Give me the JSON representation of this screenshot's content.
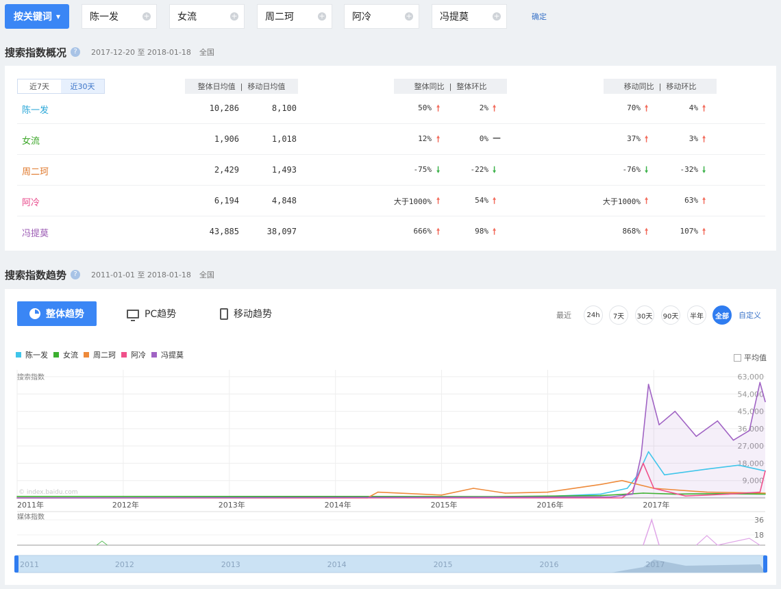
{
  "topbar": {
    "keyword_button": "按关键词",
    "keywords": [
      "陈一发",
      "女流",
      "周二珂",
      "阿冷",
      "冯提莫"
    ],
    "confirm": "确定"
  },
  "overview": {
    "title": "搜索指数概况",
    "date_range": "2017-12-20 至 2018-01-18",
    "region": "全国",
    "tabs": [
      "近7天",
      "近30天"
    ],
    "active_tab": "近30天",
    "headers": {
      "avg": [
        "整体日均值",
        "移动日均值"
      ],
      "overall_change": [
        "整体同比",
        "整体环比"
      ],
      "mobile_change": [
        "移动同比",
        "移动环比"
      ]
    },
    "rows": [
      {
        "name": "陈一发",
        "color": "#2aa7d8",
        "overall_avg": "10,286",
        "mobile_avg": "8,100",
        "overall_yoy": "50%",
        "overall_yoy_dir": "up",
        "overall_mom": "2%",
        "overall_mom_dir": "up",
        "mobile_yoy": "70%",
        "mobile_yoy_dir": "up",
        "mobile_mom": "4%",
        "mobile_mom_dir": "up"
      },
      {
        "name": "女流",
        "color": "#3aa526",
        "overall_avg": "1,906",
        "mobile_avg": "1,018",
        "overall_yoy": "12%",
        "overall_yoy_dir": "up",
        "overall_mom": "0%",
        "overall_mom_dir": "flat",
        "mobile_yoy": "37%",
        "mobile_yoy_dir": "up",
        "mobile_mom": "3%",
        "mobile_mom_dir": "up"
      },
      {
        "name": "周二珂",
        "color": "#e07a2e",
        "overall_avg": "2,429",
        "mobile_avg": "1,493",
        "overall_yoy": "-75%",
        "overall_yoy_dir": "down",
        "overall_mom": "-22%",
        "overall_mom_dir": "down",
        "mobile_yoy": "-76%",
        "mobile_yoy_dir": "down",
        "mobile_mom": "-32%",
        "mobile_mom_dir": "down"
      },
      {
        "name": "阿冷",
        "color": "#e8488a",
        "overall_avg": "6,194",
        "mobile_avg": "4,848",
        "overall_yoy": "大于1000%",
        "overall_yoy_dir": "up",
        "overall_mom": "54%",
        "overall_mom_dir": "up",
        "mobile_yoy": "大于1000%",
        "mobile_yoy_dir": "up",
        "mobile_mom": "63%",
        "mobile_mom_dir": "up"
      },
      {
        "name": "冯提莫",
        "color": "#9c5cb4",
        "overall_avg": "43,885",
        "mobile_avg": "38,097",
        "overall_yoy": "666%",
        "overall_yoy_dir": "up",
        "overall_mom": "98%",
        "overall_mom_dir": "up",
        "mobile_yoy": "868%",
        "mobile_yoy_dir": "up",
        "mobile_mom": "107%",
        "mobile_mom_dir": "up"
      }
    ]
  },
  "trend": {
    "title": "搜索指数趋势",
    "date_range": "2011-01-01 至 2018-01-18",
    "region": "全国",
    "tabs": {
      "overall": "整体趋势",
      "pc": "PC趋势",
      "mobile": "移动趋势"
    },
    "range_label": "最近",
    "ranges": [
      "24h",
      "7天",
      "30天",
      "90天",
      "半年",
      "全部"
    ],
    "active_range": "全部",
    "custom": "自定义",
    "average_label": "平均值",
    "watermark": "© index.baidu.com"
  },
  "chart_data": {
    "type": "line",
    "title": "",
    "xlabel": "",
    "ylabel": "搜索指数",
    "categories": [
      "2011年",
      "2012年",
      "2013年",
      "2014年",
      "2015年",
      "2016年",
      "2017年"
    ],
    "ylim": [
      0,
      63000
    ],
    "yticks": [
      "63,000",
      "54,000",
      "45,000",
      "36,000",
      "27,000",
      "18,000",
      "9,000"
    ],
    "legend_position": "top-left",
    "grid": true,
    "series": [
      {
        "name": "陈一发",
        "color": "#3fc5ea",
        "x": [
          2011.0,
          2014.5,
          2015.5,
          2016.0,
          2016.5,
          2016.75,
          2016.85,
          2016.95,
          2017.1,
          2017.5,
          2017.8,
          2018.05
        ],
        "values": [
          0,
          300,
          500,
          800,
          2000,
          5000,
          12000,
          24000,
          12000,
          15000,
          17000,
          14000
        ]
      },
      {
        "name": "女流",
        "color": "#3cb030",
        "x": [
          2011.0,
          2014.0,
          2015.5,
          2016.5,
          2016.9,
          2017.2,
          2017.6,
          2018.05
        ],
        "values": [
          800,
          800,
          700,
          1200,
          2500,
          2000,
          2200,
          2000
        ]
      },
      {
        "name": "周二珂",
        "color": "#ee8a3a",
        "x": [
          2011.0,
          2014.3,
          2014.4,
          2015.0,
          2015.3,
          2015.6,
          2016.0,
          2016.5,
          2016.7,
          2017.0,
          2017.5,
          2018.05
        ],
        "values": [
          0,
          0,
          3000,
          1500,
          5000,
          2500,
          3000,
          7000,
          9000,
          5000,
          3000,
          2500
        ]
      },
      {
        "name": "阿冷",
        "color": "#f0508a",
        "x": [
          2011.0,
          2016.7,
          2016.8,
          2016.9,
          2017.0,
          2017.3,
          2017.7,
          2018.0,
          2018.05
        ],
        "values": [
          0,
          0,
          4000,
          18000,
          5000,
          1000,
          2000,
          3000,
          14000
        ]
      },
      {
        "name": "冯提莫",
        "color": "#a063c4",
        "x": [
          2011.0,
          2016.6,
          2016.8,
          2016.88,
          2016.95,
          2017.05,
          2017.2,
          2017.4,
          2017.6,
          2017.75,
          2017.9,
          2018.0,
          2018.05
        ],
        "values": [
          0,
          500,
          2000,
          22000,
          59000,
          38000,
          45000,
          32000,
          40000,
          30000,
          35000,
          60000,
          50000
        ]
      }
    ],
    "media": {
      "label": "媒体指数",
      "yticks": [
        "36",
        "18"
      ],
      "ylim": [
        0,
        36
      ]
    },
    "navigator": {
      "labels": [
        "2011",
        "2012",
        "2013",
        "2014",
        "2015",
        "2016",
        "2017"
      ]
    }
  }
}
